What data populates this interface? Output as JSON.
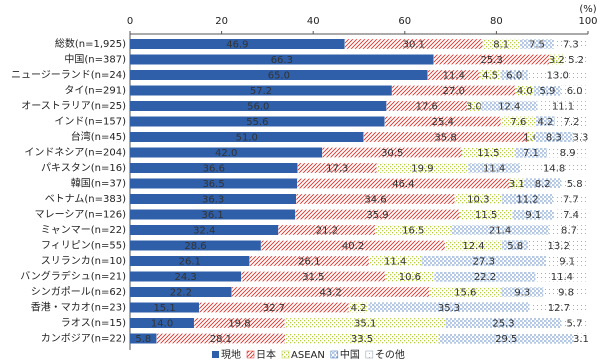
{
  "chart_data": {
    "type": "stacked_bar_horizontal",
    "x_unit": "(%)",
    "categories": [
      "総数(n=1,925)",
      "中国(n=387)",
      "ニュージーランド(n=24)",
      "タイ(n=291)",
      "オーストラリア(n=25)",
      "インド(n=157)",
      "台湾(n=45)",
      "インドネシア(n=204)",
      "パキスタン(n=16)",
      "韓国(n=37)",
      "ベトナム(n=383)",
      "マレーシア(n=126)",
      "ミャンマー(n=22)",
      "フィリピン(n=55)",
      "スリランカ(n=10)",
      "バングラデシュ(n=21)",
      "シンガポール(n=62)",
      "香港・マカオ(n=23)",
      "ラオス(n=15)",
      "カンボジア(n=22)"
    ],
    "series": [
      {
        "name": "現地",
        "color": "#2f5fa8",
        "pattern": "solid",
        "values": [
          46.9,
          66.3,
          65.0,
          57.2,
          56.0,
          55.6,
          51.0,
          42.0,
          36.6,
          36.5,
          36.3,
          36.1,
          32.4,
          28.6,
          26.1,
          24.3,
          22.2,
          15.1,
          14.0,
          5.8
        ],
        "value_labels": [
          "46.9",
          "66.3",
          "65.0",
          "57.2",
          "56.0",
          "55.6",
          "51.0",
          "42.0",
          "36.6",
          "36.5",
          "36.3",
          "36.1",
          "32.4",
          "28.6",
          "26.1",
          "24.3",
          "22.2",
          "15.1",
          "14.0",
          "5.8"
        ]
      },
      {
        "name": "日本",
        "color": "#d9322b",
        "pattern": "hatch",
        "values": [
          30.1,
          25.3,
          11.4,
          27.0,
          17.6,
          25.4,
          35.8,
          30.5,
          17.3,
          46.4,
          34.6,
          35.9,
          21.2,
          40.2,
          26.1,
          31.5,
          43.2,
          32.7,
          19.8,
          28.1
        ],
        "value_labels": [
          "30.1",
          "25.3",
          "11.4",
          "27.0",
          "17.6",
          "25.4",
          "35.8",
          "30.5",
          "17.3",
          "46.4",
          "34.6",
          "35.9",
          "21.2",
          "40.2",
          "26.1",
          "31.5",
          "43.2",
          "32.7",
          "19.8",
          "28.1"
        ]
      },
      {
        "name": "ASEAN",
        "color": "#b9cc3a",
        "pattern": "dots",
        "values": [
          8.1,
          3.2,
          4.5,
          4.0,
          3.0,
          7.6,
          1.6,
          11.5,
          19.9,
          3.1,
          10.3,
          11.5,
          16.5,
          12.4,
          11.4,
          10.6,
          15.6,
          4.2,
          35.1,
          33.5
        ],
        "value_labels": [
          "8.1",
          "3.2",
          "4.5",
          "4.0",
          "3.0",
          "7.6",
          "1.6",
          "11.5",
          "19.9",
          "3.1",
          "10.3",
          "11.5",
          "16.5",
          "12.4",
          "11.4",
          "10.6",
          "15.6",
          "4.2",
          "35.1",
          "33.5"
        ]
      },
      {
        "name": "中国",
        "color": "#3a6fb8",
        "pattern": "dash",
        "values": [
          7.5,
          null,
          6.0,
          5.9,
          12.4,
          4.2,
          8.3,
          7.1,
          11.4,
          8.2,
          11.2,
          9.1,
          21.4,
          5.8,
          27.3,
          22.2,
          9.3,
          35.3,
          25.3,
          29.5
        ],
        "value_labels": [
          "7.5",
          null,
          "6.0",
          "5.9",
          "12.4",
          "4.2",
          "8.3",
          "7.1",
          "11.4",
          "8.2",
          "11.2",
          "9.1",
          "21.4",
          "5.8",
          "27.3",
          "22.2",
          "9.3",
          "35.3",
          "25.3",
          "29.5"
        ]
      },
      {
        "name": "その他",
        "color": "#8a9bb0",
        "pattern": "fine",
        "values": [
          7.3,
          5.2,
          13.0,
          6.0,
          11.1,
          7.2,
          3.3,
          8.9,
          14.8,
          5.8,
          7.7,
          7.4,
          8.7,
          13.2,
          9.1,
          11.4,
          9.8,
          12.7,
          5.7,
          3.1
        ],
        "value_labels": [
          "7.3",
          "5.2",
          "13.0",
          "6.0",
          "11.1",
          "7.2",
          "3.3",
          "8.9",
          "14.8",
          "5.8",
          "7.7",
          "7.4",
          "8.7",
          "13.2",
          "9.1",
          "11.4",
          "9.8",
          "12.7",
          "5.7",
          "3.1"
        ]
      }
    ],
    "xlim": [
      0,
      100
    ],
    "xticks": [
      0,
      20,
      40,
      60,
      80,
      100
    ],
    "legend": "bottom"
  }
}
